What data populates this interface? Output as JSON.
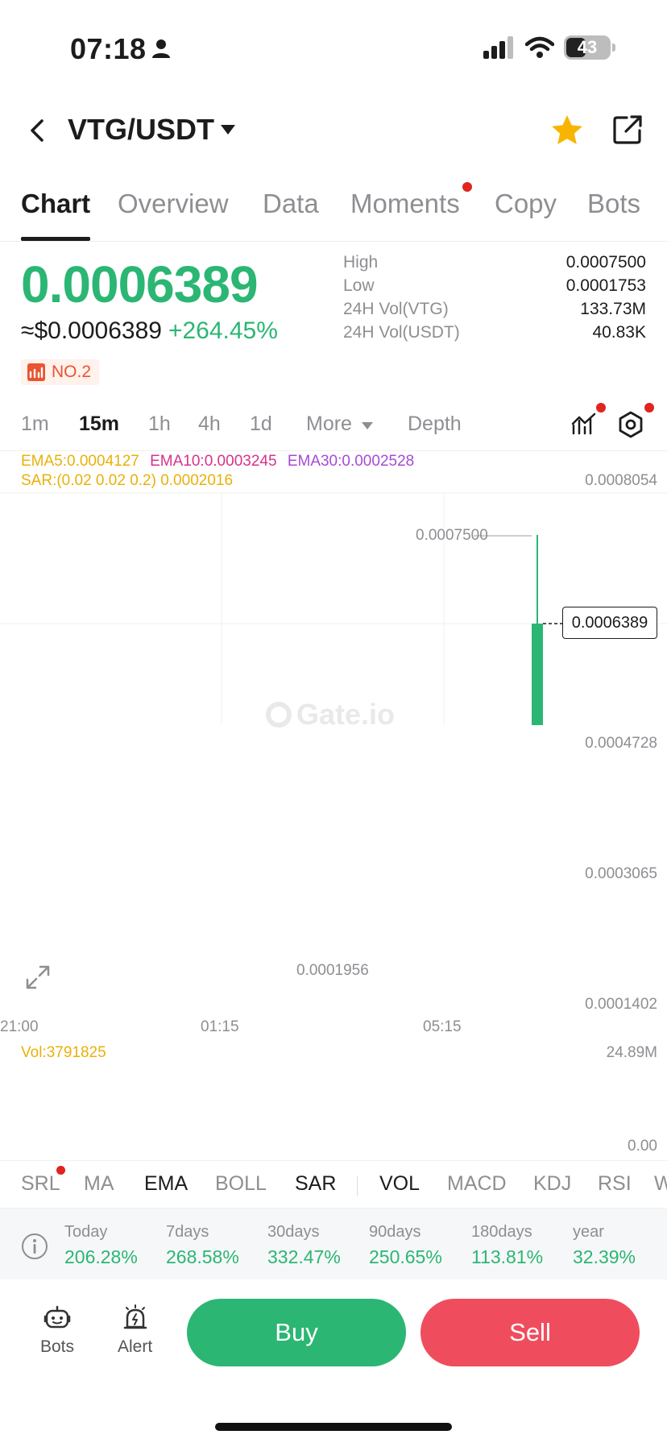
{
  "status": {
    "time": "07:18",
    "battery": "43"
  },
  "header": {
    "pair": "VTG/USDT"
  },
  "tabs": [
    "Chart",
    "Overview",
    "Data",
    "Moments",
    "Copy",
    "Bots"
  ],
  "ticker": {
    "price": "0.0006389",
    "usd_price": "≈$0.0006389",
    "change": "+264.45%",
    "rank": "NO.2",
    "stats": [
      {
        "label": "High",
        "value": "0.0007500"
      },
      {
        "label": "Low",
        "value": "0.0001753"
      },
      {
        "label": "24H Vol(VTG)",
        "value": "133.73M"
      },
      {
        "label": "24H Vol(USDT)",
        "value": "40.83K"
      }
    ]
  },
  "intervals": [
    "1m",
    "15m",
    "1h",
    "4h",
    "1d",
    "More",
    "Depth"
  ],
  "indicators_legend": {
    "ema5": "EMA5:0.0004127",
    "ema10": "EMA10:0.0003245",
    "ema30": "EMA30:0.0002528",
    "sar": "SAR:(0.02 0.02 0.2) 0.0002016"
  },
  "chart": {
    "watermark": "Gate.io",
    "y_ticks": [
      "0.0008054",
      "0.0004728",
      "0.0003065",
      "0.0001402"
    ],
    "x_ticks": [
      "21:00",
      "01:15",
      "05:15"
    ],
    "high_mark": "0.0007500",
    "low_mark": "0.0001956",
    "current_price": "0.0006389",
    "volume_label": "Vol:3791825",
    "volume_max": "24.89M",
    "volume_min": "0.00"
  },
  "indicator_tabs": [
    "SRL",
    "MA",
    "EMA",
    "BOLL",
    "SAR",
    "VOL",
    "MACD",
    "KDJ",
    "RSI",
    "W"
  ],
  "performance": [
    {
      "label": "Today",
      "value": "206.28%"
    },
    {
      "label": "7days",
      "value": "268.58%"
    },
    {
      "label": "30days",
      "value": "332.47%"
    },
    {
      "label": "90days",
      "value": "250.65%"
    },
    {
      "label": "180days",
      "value": "113.81%"
    },
    {
      "label": "year",
      "value": "32.39%"
    }
  ],
  "bottom": {
    "bots": "Bots",
    "alert": "Alert",
    "buy": "Buy",
    "sell": "Sell"
  },
  "colors": {
    "up": "#2bb673",
    "down": "#ef4d5d",
    "ema5": "#e8b10a",
    "ema10": "#d6338a",
    "ema30": "#a64bd6",
    "sar": "#e0434f"
  }
}
